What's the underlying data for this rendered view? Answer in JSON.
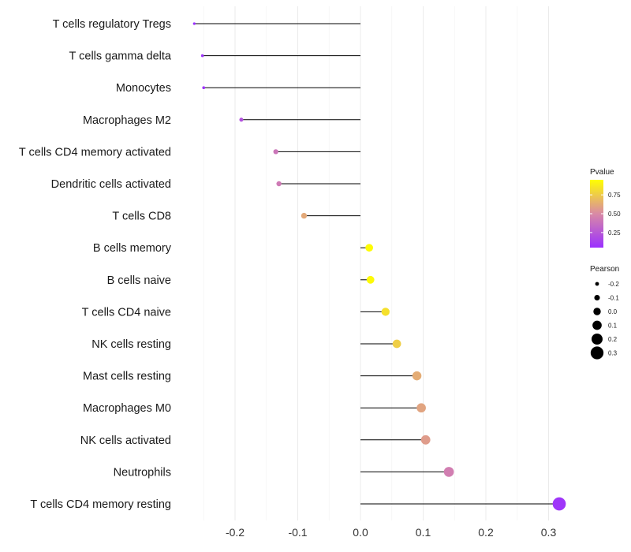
{
  "chart_data": {
    "type": "lollipop",
    "title": "",
    "xlabel": "",
    "ylabel": "",
    "xlim": [
      -0.27,
      0.33
    ],
    "x_ticks": [
      -0.2,
      -0.1,
      0.0,
      0.1,
      0.2,
      0.3
    ],
    "x_tick_labels": [
      "-0.2",
      "-0.1",
      "0.0",
      "0.1",
      "0.2",
      "0.3"
    ],
    "points": [
      {
        "category": "T cells regulatory  Tregs",
        "pearson": -0.265,
        "pvalue": 0.05
      },
      {
        "category": "T cells gamma delta",
        "pearson": -0.252,
        "pvalue": 0.07
      },
      {
        "category": "Monocytes",
        "pearson": -0.25,
        "pvalue": 0.07
      },
      {
        "category": "Macrophages M2",
        "pearson": -0.19,
        "pvalue": 0.22
      },
      {
        "category": "T cells CD4 memory activated",
        "pearson": -0.135,
        "pvalue": 0.4
      },
      {
        "category": "Dendritic cells activated",
        "pearson": -0.13,
        "pvalue": 0.42
      },
      {
        "category": "T cells CD8",
        "pearson": -0.09,
        "pvalue": 0.62
      },
      {
        "category": "B cells memory",
        "pearson": 0.014,
        "pvalue": 0.94
      },
      {
        "category": "B cells naive",
        "pearson": 0.016,
        "pvalue": 0.93
      },
      {
        "category": "T cells CD4 naive",
        "pearson": 0.04,
        "pvalue": 0.83
      },
      {
        "category": "NK cells resting",
        "pearson": 0.058,
        "pvalue": 0.76
      },
      {
        "category": "Mast cells resting",
        "pearson": 0.09,
        "pvalue": 0.63
      },
      {
        "category": "Macrophages M0",
        "pearson": 0.097,
        "pvalue": 0.6
      },
      {
        "category": "NK cells activated",
        "pearson": 0.104,
        "pvalue": 0.57
      },
      {
        "category": "Neutrophils",
        "pearson": 0.141,
        "pvalue": 0.44
      },
      {
        "category": "T cells CD4 memory resting",
        "pearson": 0.317,
        "pvalue": 0.08
      }
    ],
    "color_legend": {
      "title": "Pvalue",
      "ticks": [
        0.25,
        0.5,
        0.75
      ],
      "tick_labels": [
        "0.25",
        "0.50",
        "0.75"
      ],
      "range": [
        0.05,
        0.95
      ],
      "low_color": "#9b30ff",
      "mid_color": "#d98aa5",
      "high_color": "#ffff00"
    },
    "size_legend": {
      "title": "Pearson",
      "values": [
        -0.2,
        -0.1,
        0.0,
        0.1,
        0.2,
        0.3
      ],
      "labels": [
        "-0.2",
        "-0.1",
        "0.0",
        "0.1",
        "0.2",
        "0.3"
      ]
    }
  }
}
